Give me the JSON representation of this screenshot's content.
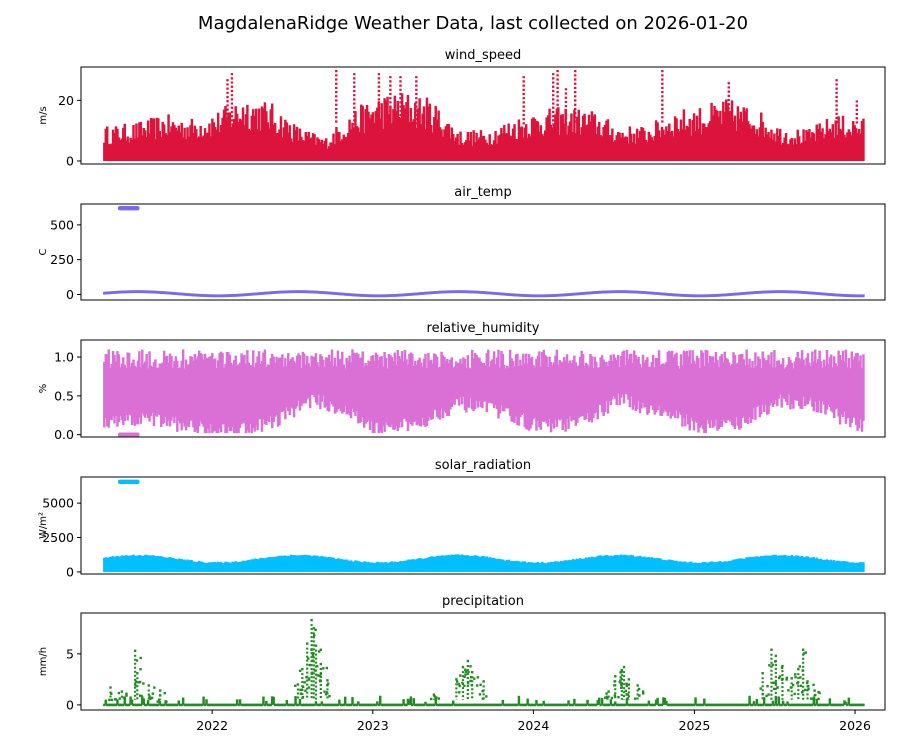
{
  "title": "MagdalenaRidge Weather Data, last collected on 2026-01-20",
  "x_axis": {
    "type": "date",
    "range": [
      "2021-03-09",
      "2026-03-10"
    ],
    "ticks": [
      {
        "date": "2022-01-01",
        "label": "2022"
      },
      {
        "date": "2023-01-01",
        "label": "2023"
      },
      {
        "date": "2024-01-01",
        "label": "2024"
      },
      {
        "date": "2025-01-01",
        "label": "2025"
      },
      {
        "date": "2026-01-01",
        "label": "2026"
      }
    ]
  },
  "chart_data": [
    {
      "type": "scatter",
      "title": "wind_speed",
      "ylabel": "m/s",
      "ylim": [
        -1,
        31
      ],
      "yticks": [
        0,
        20
      ],
      "color": "#dc143c",
      "x_start": "2021-05-01",
      "x_end": "2026-01-20",
      "band_lower": 0,
      "band_upper_points": [
        [
          "2021-05",
          "9"
        ],
        [
          "2021-07",
          "10"
        ],
        [
          "2021-09",
          "12"
        ],
        [
          "2021-11",
          "11"
        ],
        [
          "2022-01",
          "13"
        ],
        [
          "2022-03",
          "17"
        ],
        [
          "2022-05",
          "15"
        ],
        [
          "2022-07",
          "9"
        ],
        [
          "2022-09",
          "6"
        ],
        [
          "2022-11",
          "13"
        ],
        [
          "2023-01",
          "17"
        ],
        [
          "2023-03",
          "18"
        ],
        [
          "2023-05",
          "16"
        ],
        [
          "2023-07",
          "8"
        ],
        [
          "2023-09",
          "8"
        ],
        [
          "2023-11",
          "11"
        ],
        [
          "2024-01",
          "13"
        ],
        [
          "2024-03",
          "14"
        ],
        [
          "2024-05",
          "13"
        ],
        [
          "2024-07",
          "9"
        ],
        [
          "2024-09",
          "9"
        ],
        [
          "2024-11",
          "13"
        ],
        [
          "2025-01",
          "14"
        ],
        [
          "2025-03",
          "16"
        ],
        [
          "2025-05",
          "14"
        ],
        [
          "2025-07",
          "9"
        ],
        [
          "2025-09",
          "8"
        ],
        [
          "2025-11",
          "12"
        ],
        [
          "2026-01",
          "11"
        ]
      ],
      "spikes": [
        [
          "2022-02-15",
          29
        ],
        [
          "2022-02-05",
          27
        ],
        [
          "2022-10-10",
          30
        ],
        [
          "2022-11-20",
          29
        ],
        [
          "2023-01-15",
          29
        ],
        [
          "2023-02-10",
          28
        ],
        [
          "2023-03-05",
          28
        ],
        [
          "2023-04-10",
          28
        ],
        [
          "2023-12-10",
          28
        ],
        [
          "2024-02-15",
          29
        ],
        [
          "2024-02-25",
          30
        ],
        [
          "2024-04-05",
          30
        ],
        [
          "2024-03-15",
          24
        ],
        [
          "2024-10-20",
          30
        ],
        [
          "2025-03-20",
          26
        ],
        [
          "2025-11-20",
          27
        ],
        [
          "2026-01-05",
          20
        ]
      ]
    },
    {
      "type": "scatter",
      "title": "air_temp",
      "ylabel": "C",
      "ylim": [
        -40,
        650
      ],
      "yticks": [
        0,
        250,
        500
      ],
      "color": "#7b68ee",
      "x_start": "2021-05-01",
      "x_end": "2026-01-20",
      "seasonal": {
        "mean": 5,
        "amplitude": 15,
        "noise": 10
      },
      "outliers": {
        "start": "2021-06-01",
        "end": "2021-07-20",
        "value": 620
      }
    },
    {
      "type": "scatter",
      "title": "relative_humidity",
      "ylabel": "%",
      "ylim": [
        -0.03,
        1.22
      ],
      "yticks": [
        0.0,
        0.5,
        1.0
      ],
      "color": "#da70d6",
      "x_start": "2021-05-01",
      "x_end": "2026-01-20",
      "band_lower_points": [
        [
          "2021-05",
          "0.15"
        ],
        [
          "2021-08",
          "0.20"
        ],
        [
          "2021-11",
          "0.10"
        ],
        [
          "2022-02",
          "0.05"
        ],
        [
          "2022-05",
          "0.15"
        ],
        [
          "2022-08",
          "0.45"
        ],
        [
          "2022-10",
          "0.35"
        ],
        [
          "2023-01",
          "0.05"
        ],
        [
          "2023-04",
          "0.15"
        ],
        [
          "2023-07",
          "0.40"
        ],
        [
          "2023-10",
          "0.30"
        ],
        [
          "2024-01",
          "0.10"
        ],
        [
          "2024-04",
          "0.15"
        ],
        [
          "2024-07",
          "0.45"
        ],
        [
          "2024-10",
          "0.30"
        ],
        [
          "2025-01",
          "0.10"
        ],
        [
          "2025-04",
          "0.15"
        ],
        [
          "2025-07",
          "0.45"
        ],
        [
          "2025-10",
          "0.35"
        ],
        [
          "2026-01",
          "0.10"
        ]
      ],
      "band_upper": 1.1,
      "outliers": {
        "start": "2021-06-01",
        "end": "2021-07-20",
        "value": 0.0
      }
    },
    {
      "type": "scatter",
      "title": "solar_radiation",
      "ylabel": "W/m²",
      "ylim": [
        -150,
        6900
      ],
      "yticks": [
        0,
        2500,
        5000
      ],
      "color": "#00bfff",
      "x_start": "2021-05-01",
      "x_end": "2026-01-20",
      "band_lower": 0,
      "seasonal_upper": {
        "mean": 950,
        "amplitude": 270
      },
      "outliers": {
        "start": "2021-06-01",
        "end": "2021-07-20",
        "value": 6550
      }
    },
    {
      "type": "scatter",
      "title": "precipitation",
      "ylabel": "mm/h",
      "ylim": [
        -0.5,
        9
      ],
      "yticks": [
        0,
        5
      ],
      "color": "#228b22",
      "x_start": "2021-05-01",
      "x_end": "2026-01-20",
      "baseline": 0,
      "spikes": [
        [
          "2021-05-15",
          1.7
        ],
        [
          "2021-06-10",
          1.3
        ],
        [
          "2021-07-10",
          5.3
        ],
        [
          "2021-07-15",
          3.1
        ],
        [
          "2021-08-10",
          1.9
        ],
        [
          "2021-09-05",
          1.4
        ],
        [
          "2022-07-15",
          2.0
        ],
        [
          "2022-07-25",
          3.5
        ],
        [
          "2022-08-05",
          6.0
        ],
        [
          "2022-08-15",
          8.3
        ],
        [
          "2022-08-20",
          7.5
        ],
        [
          "2022-08-25",
          5.8
        ],
        [
          "2022-09-05",
          4.0
        ],
        [
          "2022-09-20",
          2.4
        ],
        [
          "2023-05-20",
          1.0
        ],
        [
          "2023-07-10",
          2.5
        ],
        [
          "2023-07-25",
          3.7
        ],
        [
          "2023-08-05",
          4.3
        ],
        [
          "2023-08-15",
          3.2
        ],
        [
          "2023-09-10",
          2.3
        ],
        [
          "2024-06-20",
          1.3
        ],
        [
          "2024-07-05",
          2.8
        ],
        [
          "2024-07-20",
          3.4
        ],
        [
          "2024-07-25",
          3.7
        ],
        [
          "2024-08-05",
          2.5
        ],
        [
          "2024-08-25",
          1.9
        ],
        [
          "2025-06-05",
          3.1
        ],
        [
          "2025-06-25",
          5.4
        ],
        [
          "2025-07-05",
          4.8
        ],
        [
          "2025-07-20",
          3.8
        ],
        [
          "2025-08-10",
          2.6
        ],
        [
          "2025-08-25",
          3.5
        ],
        [
          "2025-09-05",
          5.4
        ],
        [
          "2025-09-15",
          2.3
        ],
        [
          "2025-10-01",
          1.4
        ]
      ]
    }
  ]
}
